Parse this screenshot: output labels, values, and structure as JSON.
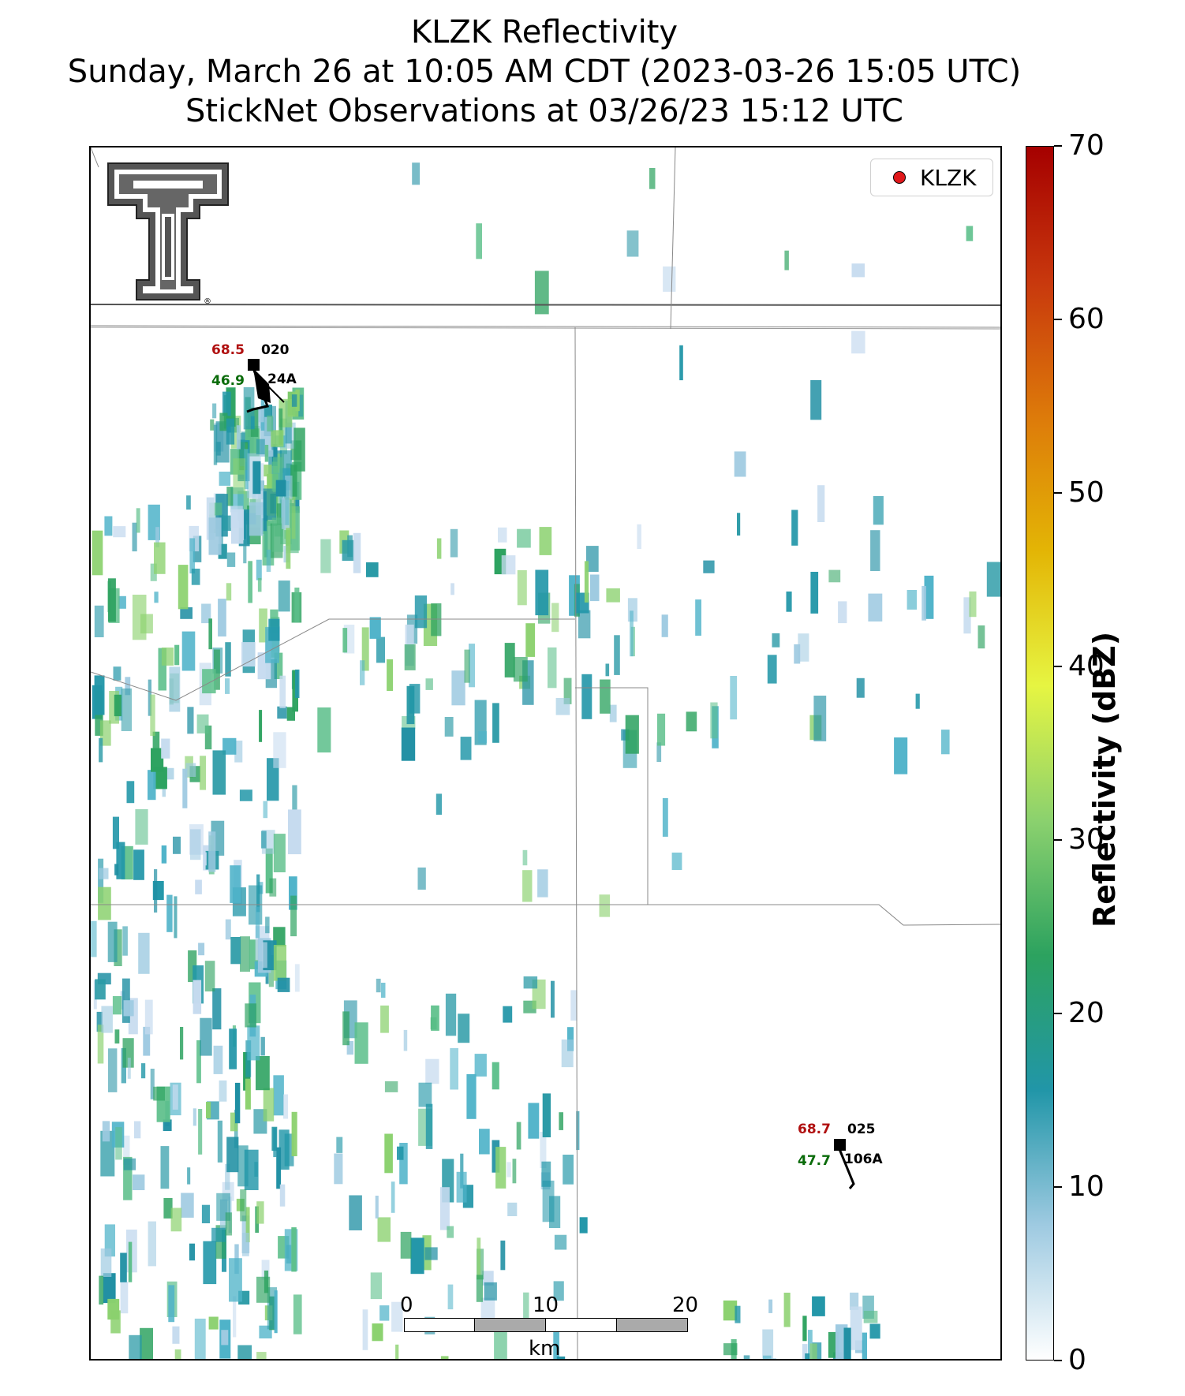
{
  "title": {
    "line1": "KLZK Reflectivity",
    "line2": "Sunday, March 26 at 10:05 AM CDT (2023-03-26 15:05 UTC)",
    "line3": "StickNet Observations at 03/26/23 15:12 UTC"
  },
  "legend": {
    "label": "KLZK",
    "marker_color": "#e0181b"
  },
  "colorbar": {
    "title": "Reflectivity (dBZ)",
    "ticks": [
      "0",
      "10",
      "20",
      "30",
      "40",
      "50",
      "60",
      "70"
    ],
    "range": [
      0,
      70
    ],
    "colors": [
      "#ffffff",
      "#9ecae1",
      "#2196a8",
      "#2ca25f",
      "#8bd16e",
      "#e6f542",
      "#e3b505",
      "#dd7a0a",
      "#c8380d",
      "#a50000"
    ]
  },
  "scale_bar": {
    "labels": [
      "0",
      "10",
      "20"
    ],
    "unit": "km"
  },
  "stations": [
    {
      "id": "020",
      "temperature": "68.5",
      "dewpoint": "46.9",
      "probe": "24A",
      "temp_color": "#b01010",
      "dew_color": "#0a6b0a"
    },
    {
      "id": "025",
      "temperature": "68.7",
      "dewpoint": "47.7",
      "probe": "106A",
      "temp_color": "#b01010",
      "dew_color": "#0a6b0a"
    }
  ],
  "logo": "texas-tech-double-t-logo"
}
